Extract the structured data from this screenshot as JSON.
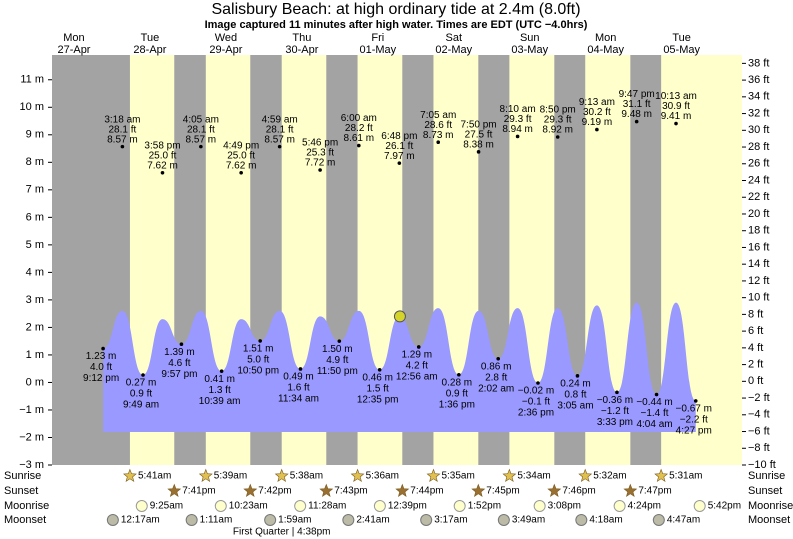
{
  "chart_data": {
    "type": "tide",
    "title": "Salisbury Beach: at high  ordinary tide at 2.4m (8.0ft)",
    "subtitle": "Image captured 11 minutes after high water. Times are EDT (UTC −4.0hrs)",
    "days": [
      {
        "name": "Mon",
        "date": "27-Apr"
      },
      {
        "name": "Tue",
        "date": "28-Apr"
      },
      {
        "name": "Wed",
        "date": "29-Apr"
      },
      {
        "name": "Thu",
        "date": "30-Apr"
      },
      {
        "name": "Fri",
        "date": "01-May"
      },
      {
        "name": "Sat",
        "date": "02-May"
      },
      {
        "name": "Sun",
        "date": "03-May"
      },
      {
        "name": "Mon",
        "date": "04-May"
      },
      {
        "name": "Tue",
        "date": "05-May"
      }
    ],
    "ylim": [
      -3,
      11.9
    ],
    "yticks": [
      {
        "value": -3,
        "label": "−3 m"
      },
      {
        "value": -2,
        "label": "−2 m"
      },
      {
        "value": -1,
        "label": "−1 m"
      },
      {
        "value": 0,
        "label": "0 m"
      },
      {
        "value": 1,
        "label": "1 m"
      },
      {
        "value": 2,
        "label": "2 m"
      },
      {
        "value": 3,
        "label": "3 m"
      },
      {
        "value": 4,
        "label": "4 m"
      },
      {
        "value": 5,
        "label": "5 m"
      },
      {
        "value": 6,
        "label": "6 m"
      },
      {
        "value": 7,
        "label": "7 m"
      },
      {
        "value": 8,
        "label": "8 m"
      },
      {
        "value": 9,
        "label": "9 m"
      },
      {
        "value": 10,
        "label": "10 m"
      },
      {
        "value": 11,
        "label": "11 m"
      }
    ],
    "y2lim": [
      -10,
      39
    ],
    "y2ticks": [
      {
        "value": -10,
        "label": "−10 ft"
      },
      {
        "value": -8,
        "label": "−8 ft"
      },
      {
        "value": -6,
        "label": "−6 ft"
      },
      {
        "value": -4,
        "label": "−4 ft"
      },
      {
        "value": -2,
        "label": "−2 ft"
      },
      {
        "value": 0,
        "label": "0 ft"
      },
      {
        "value": 2,
        "label": "2 ft"
      },
      {
        "value": 4,
        "label": "4 ft"
      },
      {
        "value": 6,
        "label": "6 ft"
      },
      {
        "value": 8,
        "label": "8 ft"
      },
      {
        "value": 10,
        "label": "10 ft"
      },
      {
        "value": 12,
        "label": "12 ft"
      },
      {
        "value": 14,
        "label": "14 ft"
      },
      {
        "value": 16,
        "label": "16 ft"
      },
      {
        "value": 18,
        "label": "18 ft"
      },
      {
        "value": 20,
        "label": "20 ft"
      },
      {
        "value": 22,
        "label": "22 ft"
      },
      {
        "value": 24,
        "label": "24 ft"
      },
      {
        "value": 26,
        "label": "26 ft"
      },
      {
        "value": 28,
        "label": "28 ft"
      },
      {
        "value": 30,
        "label": "30 ft"
      },
      {
        "value": 32,
        "label": "32 ft"
      },
      {
        "value": 34,
        "label": "34 ft"
      },
      {
        "value": 36,
        "label": "36 ft"
      },
      {
        "value": 38,
        "label": "38 ft"
      }
    ],
    "highs": [
      {
        "date": "28-Apr",
        "time": "3:18 am",
        "value": 8.57,
        "value_label": "8.57 m",
        "ft_label": "28.1 ft",
        "level": 2.6
      },
      {
        "date": "28-Apr",
        "time": "3:58 pm",
        "value": 7.62,
        "value_label": "7.62 m",
        "ft_label": "25.0 ft",
        "level": 2.3
      },
      {
        "date": "29-Apr",
        "time": "4:05 am",
        "value": 8.57,
        "value_label": "8.57 m",
        "ft_label": "28.1 ft",
        "level": 2.6
      },
      {
        "date": "29-Apr",
        "time": "4:49 pm",
        "value": 7.62,
        "value_label": "7.62 m",
        "ft_label": "25.0 ft",
        "level": 2.3
      },
      {
        "date": "30-Apr",
        "time": "4:59 am",
        "value": 8.57,
        "value_label": "8.57 m",
        "ft_label": "28.1 ft",
        "level": 2.6
      },
      {
        "date": "30-Apr",
        "time": "5:46 pm",
        "value": 7.72,
        "value_label": "7.72 m",
        "ft_label": "25.3 ft",
        "level": 2.4
      },
      {
        "date": "01-May",
        "time": "6:00 am",
        "value": 8.61,
        "value_label": "8.61 m",
        "ft_label": "28.2 ft",
        "level": 2.6
      },
      {
        "date": "01-May",
        "time": "6:48 pm",
        "value": 7.97,
        "value_label": "7.97 m",
        "ft_label": "26.1 ft",
        "level": 2.4
      },
      {
        "date": "02-May",
        "time": "7:05 am",
        "value": 8.73,
        "value_label": "8.73 m",
        "ft_label": "28.6 ft",
        "level": 2.7
      },
      {
        "date": "02-May",
        "time": "7:50 pm",
        "value": 8.38,
        "value_label": "8.38 m",
        "ft_label": "27.5 ft",
        "level": 2.6
      },
      {
        "date": "03-May",
        "time": "8:10 am",
        "value": 8.94,
        "value_label": "8.94 m",
        "ft_label": "29.3 ft",
        "level": 2.7
      },
      {
        "date": "03-May",
        "time": "8:50 pm",
        "value": 8.92,
        "value_label": "8.92 m",
        "ft_label": "29.3 ft",
        "level": 2.7
      },
      {
        "date": "04-May",
        "time": "9:13 am",
        "value": 9.19,
        "value_label": "9.19 m",
        "ft_label": "30.2 ft",
        "level": 2.8
      },
      {
        "date": "04-May",
        "time": "9:47 pm",
        "value": 9.48,
        "value_label": "9.48 m",
        "ft_label": "31.1 ft",
        "level": 2.9
      },
      {
        "date": "05-May",
        "time": "10:13 am",
        "value": 9.41,
        "value_label": "9.41 m",
        "ft_label": "30.9 ft",
        "level": 2.9
      }
    ],
    "lows": [
      {
        "date": "27-Apr",
        "time": "9:12 pm",
        "value": 1.23,
        "value_label": "1.23 m",
        "ft_label": "4.0 ft"
      },
      {
        "date": "28-Apr",
        "time": "9:49 am",
        "value": 0.27,
        "value_label": "0.27 m",
        "ft_label": "0.9 ft"
      },
      {
        "date": "28-Apr",
        "time": "9:57 pm",
        "value": 1.39,
        "value_label": "1.39 m",
        "ft_label": "4.6 ft"
      },
      {
        "date": "29-Apr",
        "time": "10:39 am",
        "value": 0.41,
        "value_label": "0.41 m",
        "ft_label": "1.3 ft"
      },
      {
        "date": "29-Apr",
        "time": "10:50 pm",
        "value": 1.51,
        "value_label": "1.51 m",
        "ft_label": "5.0 ft"
      },
      {
        "date": "30-Apr",
        "time": "11:34 am",
        "value": 0.49,
        "value_label": "0.49 m",
        "ft_label": "1.6 ft"
      },
      {
        "date": "30-Apr",
        "time": "11:50 pm",
        "value": 1.5,
        "value_label": "1.50 m",
        "ft_label": "4.9 ft"
      },
      {
        "date": "01-May",
        "time": "12:35 pm",
        "value": 0.46,
        "value_label": "0.46 m",
        "ft_label": "1.5 ft"
      },
      {
        "date": "02-May",
        "time": "12:56 am",
        "value": 1.29,
        "value_label": "1.29 m",
        "ft_label": "4.2 ft"
      },
      {
        "date": "02-May",
        "time": "1:36 pm",
        "value": 0.28,
        "value_label": "0.28 m",
        "ft_label": "0.9 ft"
      },
      {
        "date": "03-May",
        "time": "2:02 am",
        "value": 0.86,
        "value_label": "0.86 m",
        "ft_label": "2.8 ft"
      },
      {
        "date": "03-May",
        "time": "2:36 pm",
        "value": -0.02,
        "value_label": "−0.02 m",
        "ft_label": "−0.1 ft"
      },
      {
        "date": "04-May",
        "time": "3:05 am",
        "value": 0.24,
        "value_label": "0.24 m",
        "ft_label": "0.8 ft"
      },
      {
        "date": "04-May",
        "time": "3:33 pm",
        "value": -0.36,
        "value_label": "−0.36 m",
        "ft_label": "−1.2 ft"
      },
      {
        "date": "05-May",
        "time": "4:04 am",
        "value": -0.44,
        "value_label": "−0.44 m",
        "ft_label": "−1.4 ft"
      },
      {
        "date": "05-May",
        "time": "4:27 pm",
        "value": -0.67,
        "value_label": "−0.67 m",
        "ft_label": "−2.2 ft"
      }
    ],
    "curve_base": -1.8,
    "marker_value": 2.4,
    "sunrise": {
      "label": "Sunrise",
      "items": [
        {
          "date": "28-Apr",
          "time": "5:41am"
        },
        {
          "date": "29-Apr",
          "time": "5:39am"
        },
        {
          "date": "30-Apr",
          "time": "5:38am"
        },
        {
          "date": "01-May",
          "time": "5:36am"
        },
        {
          "date": "02-May",
          "time": "5:35am"
        },
        {
          "date": "03-May",
          "time": "5:34am"
        },
        {
          "date": "04-May",
          "time": "5:32am"
        },
        {
          "date": "05-May",
          "time": "5:31am"
        }
      ]
    },
    "sunset": {
      "label": "Sunset",
      "items": [
        {
          "date": "28-Apr",
          "time": "7:41pm"
        },
        {
          "date": "29-Apr",
          "time": "7:42pm"
        },
        {
          "date": "30-Apr",
          "time": "7:43pm"
        },
        {
          "date": "01-May",
          "time": "7:44pm"
        },
        {
          "date": "02-May",
          "time": "7:45pm"
        },
        {
          "date": "03-May",
          "time": "7:46pm"
        },
        {
          "date": "04-May",
          "time": "7:47pm"
        }
      ]
    },
    "moonrise": {
      "label": "Moonrise",
      "items": [
        {
          "date": "28-Apr",
          "time": "9:25am"
        },
        {
          "date": "29-Apr",
          "time": "10:23am"
        },
        {
          "date": "30-Apr",
          "time": "11:28am"
        },
        {
          "date": "01-May",
          "time": "12:39pm"
        },
        {
          "date": "02-May",
          "time": "1:52pm"
        },
        {
          "date": "03-May",
          "time": "3:08pm"
        },
        {
          "date": "04-May",
          "time": "4:24pm"
        },
        {
          "date": "05-May",
          "time": "5:42pm"
        }
      ]
    },
    "moonset": {
      "label": "Moonset",
      "items": [
        {
          "date": "28-Apr",
          "time": "12:17am"
        },
        {
          "date": "29-Apr",
          "time": "1:11am"
        },
        {
          "date": "30-Apr",
          "time": "1:59am"
        },
        {
          "date": "01-May",
          "time": "2:41am"
        },
        {
          "date": "02-May",
          "time": "3:17am"
        },
        {
          "date": "03-May",
          "time": "3:49am"
        },
        {
          "date": "04-May",
          "time": "4:18am"
        },
        {
          "date": "05-May",
          "time": "4:47am"
        }
      ]
    },
    "moon_phase": {
      "date": "30-Apr",
      "text": "First Quarter | 4:38pm"
    },
    "colors": {
      "night": "#a3a3a3",
      "day": "#ffffcc",
      "water": "#9999ff",
      "day_label": "#ff0000",
      "marker": "#d4d42a"
    }
  }
}
